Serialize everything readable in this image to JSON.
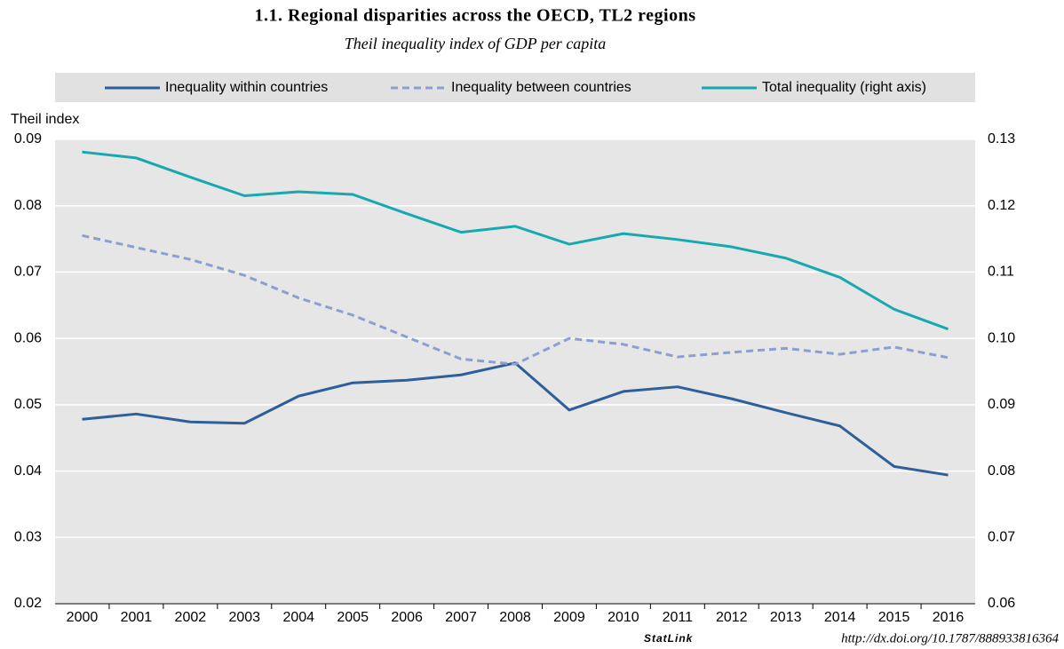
{
  "chart_data": {
    "type": "line",
    "title": "1.1. Regional disparities across the OECD, TL2 regions",
    "subtitle": "Theil inequality index of GDP per capita",
    "y_label": "Theil index",
    "categories": [
      "2000",
      "2001",
      "2002",
      "2003",
      "2004",
      "2005",
      "2006",
      "2007",
      "2008",
      "2009",
      "2010",
      "2011",
      "2012",
      "2013",
      "2014",
      "2015",
      "2016"
    ],
    "series": [
      {
        "name": "Inequality within countries",
        "color": "#2f5f9a",
        "style": "solid",
        "values": [
          0.0478,
          0.0486,
          0.0474,
          0.0472,
          0.0513,
          0.0533,
          0.0537,
          0.0545,
          0.0563,
          0.0492,
          0.052,
          0.0527,
          0.0509,
          0.0488,
          0.0468,
          0.0407,
          0.0394
        ]
      },
      {
        "name": "Inequality between countries",
        "color": "#8c9fd1",
        "style": "dashed",
        "values": [
          0.0755,
          0.0737,
          0.0719,
          0.0695,
          0.0661,
          0.0635,
          0.0602,
          0.0569,
          0.0561,
          0.06,
          0.0591,
          0.0572,
          0.0579,
          0.0585,
          0.0576,
          0.0587,
          0.0571
        ]
      },
      {
        "name": "Total inequality (right axis)",
        "color": "#17a8b0",
        "style": "solid",
        "axis": "y2",
        "values": [
          0.1281,
          0.1272,
          0.1243,
          0.1215,
          0.1221,
          0.1217,
          0.1188,
          0.116,
          0.1169,
          0.1142,
          0.1158,
          0.1149,
          0.1138,
          0.1121,
          0.1092,
          0.1044,
          0.1014
        ]
      }
    ],
    "ylim": [
      0.02,
      0.09
    ],
    "yticks": [
      0.02,
      0.03,
      0.04,
      0.05,
      0.06,
      0.07,
      0.08,
      0.09
    ],
    "y2lim": [
      0.06,
      0.13
    ],
    "y2ticks": [
      0.06,
      0.07,
      0.08,
      0.09,
      {
        "value": 0.1,
        "label": "0.10"
      },
      0.11,
      0.12,
      0.13
    ],
    "grid": true,
    "source_label": "StatLink",
    "source_url": "http://dx.doi.org/10.1787/888933816364"
  }
}
